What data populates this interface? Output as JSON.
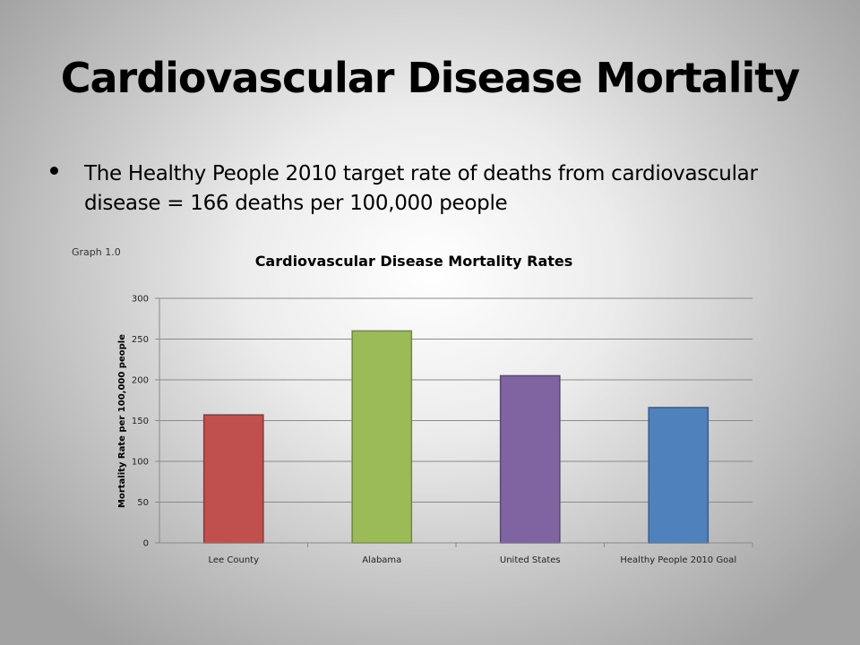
{
  "slide": {
    "title": "Cardiovascular Disease Mortality",
    "bullet": "The Healthy People 2010 target rate of deaths from cardiovascular disease = 166 deaths per 100,000 people",
    "graph_label": "Graph 1.0"
  },
  "chart_data": {
    "type": "bar",
    "title": "Cardiovascular Disease Mortality Rates",
    "xlabel": "",
    "ylabel": "Mortality Rate per 100,000 people",
    "categories": [
      "Lee County",
      "Alabama",
      "United States",
      "Healthy People 2010 Goal"
    ],
    "values": [
      157,
      260,
      205,
      166
    ],
    "colors": [
      "#c0504d",
      "#9bbb59",
      "#8064a2",
      "#4f81bd"
    ],
    "border_colors": [
      "#8c3836",
      "#71893f",
      "#5c4776",
      "#385d8a"
    ],
    "ylim": [
      0,
      300
    ],
    "yticks": [
      0,
      50,
      100,
      150,
      200,
      250,
      300
    ],
    "grid": true,
    "legend": "none"
  }
}
